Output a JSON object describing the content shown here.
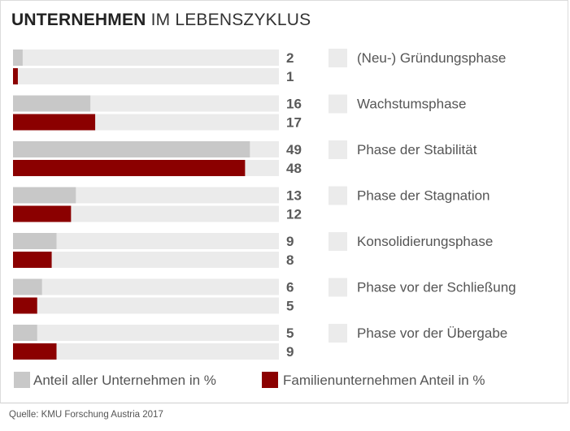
{
  "title": {
    "bold": "UNTERNEHMEN",
    "rest": " IM LEBENSZYKLUS"
  },
  "source": "Quelle: KMU Forschung Austria 2017",
  "chart_data": {
    "type": "bar",
    "orientation": "horizontal",
    "categories": [
      "(Neu-) Gründungsphase",
      "Wachstumsphase",
      "Phase der Stabilität",
      "Phase der Stagnation",
      "Konsolidierungsphase",
      "Phase vor der Schließung",
      "Phase vor der Übergabe"
    ],
    "series": [
      {
        "name": "Anteil aller Unternehmen in %",
        "values": [
          2,
          16,
          49,
          13,
          9,
          6,
          5
        ],
        "color": "#c8c8c8"
      },
      {
        "name": "Familienunternehmen Anteil in %",
        "values": [
          1,
          17,
          48,
          12,
          8,
          5,
          9
        ],
        "color": "#8b0000"
      }
    ],
    "xlim": [
      0,
      55
    ],
    "track_color": "#ebebeb",
    "value_label_color": "#5a5a5a",
    "category_marker_color": "#ebebeb",
    "legend_position": "bottom-left",
    "grid": false
  }
}
